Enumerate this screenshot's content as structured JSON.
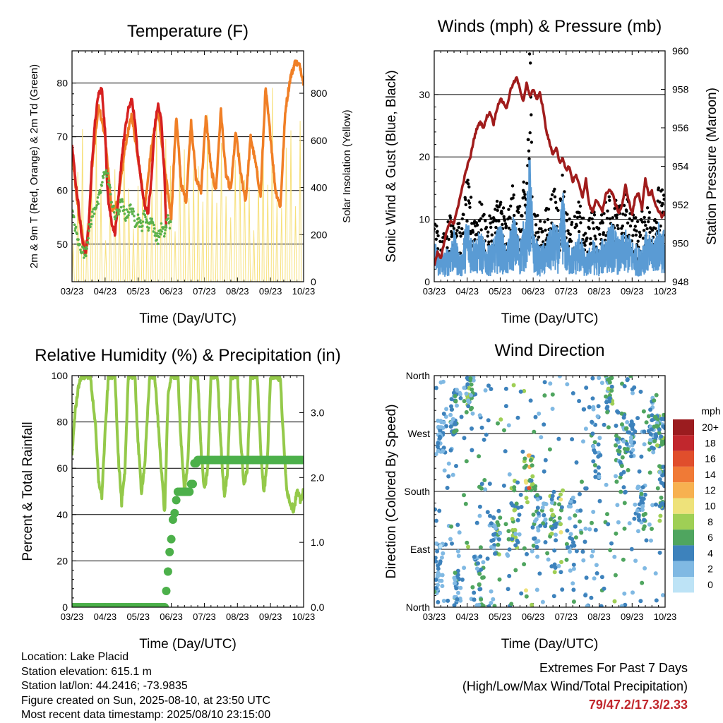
{
  "colors": {
    "temp_2m": "#d62020",
    "temp_9m": "#f07f26",
    "dewpoint": "#5ab04a",
    "solar": "#f7e07a",
    "wind_sonic": "#5a9bd4",
    "wind_gust": "#000000",
    "pressure": "#a01c1c",
    "rh": "#94c94a",
    "precip": "#4cb04a"
  },
  "chart_data": [
    {
      "id": "temperature",
      "type": "line",
      "title": "Temperature (F)",
      "xlabel": "Time (Day/UTC)",
      "ylabel": "2m & 9m T (Red, Orange) & 2m Td (Green)",
      "ylabel_right": "Solar Insolation (Yellow)",
      "x_ticks": [
        "03/23",
        "04/23",
        "05/23",
        "06/23",
        "07/23",
        "08/23",
        "09/23",
        "10/23"
      ],
      "xlim": [
        0,
        7
      ],
      "ylim": [
        43,
        86
      ],
      "yticks": [
        50,
        60,
        70,
        80
      ],
      "ylim_right": [
        0,
        980
      ],
      "yticks_right": [
        0,
        200,
        400,
        600,
        800
      ],
      "grid": "horizontal",
      "series": [
        {
          "key": "temp_2m",
          "x": [
            0,
            0.1,
            0.2,
            0.3,
            0.4,
            0.5,
            0.6,
            0.7,
            0.8,
            0.9,
            1.0,
            1.05,
            1.1,
            1.2,
            1.3,
            1.4,
            1.5,
            1.6,
            1.7,
            1.8,
            1.9,
            2.0,
            2.1,
            2.2,
            2.3,
            2.4,
            2.5,
            2.6,
            2.7,
            2.8,
            2.85
          ],
          "y": [
            69,
            62,
            57,
            51,
            48,
            53,
            65,
            73,
            78,
            79,
            71,
            63,
            58,
            54,
            52,
            58,
            66,
            71,
            75,
            77,
            73,
            66,
            61,
            57,
            56,
            62,
            72,
            76,
            73,
            62,
            52
          ]
        },
        {
          "key": "temp_9m",
          "x": [
            0,
            0.1,
            0.2,
            0.3,
            0.4,
            0.5,
            0.6,
            0.8,
            1.0,
            1.2,
            1.4,
            1.6,
            1.8,
            2.0,
            2.2,
            2.4,
            2.6,
            2.8,
            3.0,
            3.15,
            3.3,
            3.45,
            3.6,
            3.75,
            3.9,
            4.05,
            4.2,
            4.35,
            4.5,
            4.65,
            4.8,
            4.95,
            5.1,
            5.25,
            5.4,
            5.55,
            5.7,
            5.85,
            6.0,
            6.15,
            6.3,
            6.45,
            6.6,
            6.75,
            6.9,
            7.0
          ],
          "y": [
            68,
            61,
            56,
            52,
            48,
            52,
            64,
            76,
            70,
            56,
            58,
            68,
            74,
            66,
            57,
            68,
            75,
            64,
            55,
            74,
            61,
            58,
            73,
            62,
            60,
            74,
            64,
            60,
            75,
            63,
            60,
            71,
            63,
            58,
            70,
            65,
            59,
            79,
            70,
            60,
            57,
            75,
            81,
            84,
            83,
            80
          ]
        },
        {
          "key": "dewpoint",
          "x": [
            0,
            0.1,
            0.2,
            0.3,
            0.4,
            0.5,
            0.6,
            0.7,
            0.8,
            0.9,
            1.0,
            1.1,
            1.2,
            1.3,
            1.4,
            1.5,
            1.6,
            1.7,
            1.8,
            1.9,
            2.0,
            2.1,
            2.2,
            2.3,
            2.4,
            2.5,
            2.6,
            2.7,
            2.8,
            2.9,
            3.0
          ],
          "y": [
            56,
            53,
            50,
            49,
            48,
            52,
            55,
            57,
            58,
            61,
            64,
            62,
            58,
            55,
            56,
            58,
            55,
            56,
            57,
            54,
            55,
            53,
            56,
            53,
            55,
            52,
            51,
            53,
            52,
            55,
            53
          ]
        },
        {
          "key": "solar",
          "peaks_x": [
            0.28,
            0.75,
            1.25,
            1.65,
            2.15,
            2.55,
            2.9,
            3.35,
            3.7,
            4.1,
            4.55,
            5.0,
            5.3,
            5.7,
            6.05,
            6.55,
            6.9
          ],
          "peaks_y": [
            780,
            880,
            720,
            820,
            750,
            840,
            760,
            800,
            780,
            780,
            850,
            880,
            620,
            950,
            880,
            920,
            970
          ]
        }
      ]
    },
    {
      "id": "winds",
      "type": "line",
      "title": "Winds (mph) & Pressure (mb)",
      "xlabel": "Time (Day/UTC)",
      "ylabel": "Sonic Wind & Gust (Blue, Black)",
      "ylabel_right": "Station Pressure (Maroon)",
      "x_ticks": [
        "03/23",
        "04/23",
        "05/23",
        "06/23",
        "07/23",
        "08/23",
        "09/23",
        "10/23"
      ],
      "xlim": [
        0,
        7
      ],
      "ylim": [
        0,
        37
      ],
      "yticks": [
        0,
        10,
        20,
        30
      ],
      "ylim_right": [
        948,
        960
      ],
      "yticks_right": [
        948,
        950,
        952,
        954,
        956,
        958,
        960
      ],
      "grid": "horizontal",
      "series": [
        {
          "key": "pressure",
          "x": [
            0,
            0.1,
            0.2,
            0.3,
            0.4,
            0.5,
            0.6,
            0.7,
            0.8,
            0.9,
            1.0,
            1.1,
            1.2,
            1.3,
            1.4,
            1.5,
            1.6,
            1.7,
            1.8,
            1.9,
            2.0,
            2.1,
            2.2,
            2.3,
            2.4,
            2.5,
            2.6,
            2.7,
            2.8,
            2.9,
            3.0,
            3.1,
            3.2,
            3.3,
            3.4,
            3.5,
            3.6,
            3.7,
            3.8,
            3.9,
            4.0,
            4.1,
            4.2,
            4.3,
            4.4,
            4.5,
            4.6,
            4.7,
            4.8,
            4.9,
            5.0,
            5.1,
            5.2,
            5.3,
            5.4,
            5.5,
            5.6,
            5.7,
            5.8,
            5.9,
            6.0,
            6.1,
            6.2,
            6.3,
            6.4,
            6.5,
            6.6,
            6.7,
            6.8,
            6.9,
            7.0
          ],
          "y": [
            948.8,
            949.5,
            949.2,
            950.0,
            950.8,
            951.2,
            951.0,
            951.8,
            952.5,
            953.3,
            954.0,
            954.5,
            955.4,
            956.0,
            956.3,
            956.0,
            956.6,
            956.8,
            956.2,
            957.0,
            957.5,
            957.3,
            957.0,
            957.9,
            958.3,
            958.6,
            958.0,
            957.4,
            958.3,
            957.6,
            958.0,
            957.5,
            957.8,
            957.0,
            955.8,
            955.2,
            954.6,
            955.0,
            954.2,
            954.4,
            953.8,
            954.0,
            953.2,
            953.6,
            953.0,
            952.4,
            953.3,
            952.0,
            951.6,
            952.2,
            952.0,
            951.7,
            952.5,
            952.8,
            952.6,
            952.0,
            951.6,
            952.0,
            953.0,
            952.2,
            951.5,
            952.4,
            952.6,
            951.8,
            953.3,
            952.5,
            952.7,
            952.0,
            951.7,
            951.4,
            951.6
          ]
        },
        {
          "key": "wind_sonic",
          "x": [
            0,
            0.2,
            0.4,
            0.6,
            0.8,
            1.0,
            1.2,
            1.4,
            1.6,
            1.8,
            2.0,
            2.2,
            2.4,
            2.6,
            2.8,
            2.9,
            3.0,
            3.2,
            3.4,
            3.6,
            3.8,
            3.9,
            4.0,
            4.2,
            4.4,
            4.6,
            4.8,
            5.0,
            5.2,
            5.4,
            5.6,
            5.8,
            6.0,
            6.2,
            6.4,
            6.6,
            6.8,
            7.0
          ],
          "y": [
            5,
            3,
            4,
            6,
            3,
            8,
            5,
            6,
            4,
            5,
            7,
            4,
            8,
            5,
            9,
            16,
            6,
            4,
            5,
            7,
            6,
            12,
            5,
            4,
            6,
            3,
            5,
            4,
            6,
            7,
            5,
            6,
            5,
            4,
            6,
            5,
            7,
            6
          ]
        },
        {
          "key": "wind_gust",
          "x": [
            0,
            0.2,
            0.4,
            0.6,
            0.8,
            1.0,
            1.2,
            1.4,
            1.6,
            1.8,
            2.0,
            2.2,
            2.4,
            2.6,
            2.8,
            2.9,
            3.0,
            3.2,
            3.4,
            3.6,
            3.8,
            3.9,
            4.0,
            4.2,
            4.4,
            4.6,
            4.8,
            5.0,
            5.2,
            5.4,
            5.6,
            5.8,
            6.0,
            6.2,
            6.4,
            6.6,
            6.8,
            7.0
          ],
          "y": [
            9,
            6,
            8,
            11,
            7,
            14,
            10,
            11,
            8,
            10,
            13,
            8,
            14,
            10,
            16,
            35,
            12,
            8,
            10,
            13,
            11,
            16,
            10,
            8,
            11,
            7,
            10,
            8,
            11,
            13,
            10,
            12,
            10,
            8,
            11,
            10,
            13,
            12
          ]
        }
      ]
    },
    {
      "id": "humidity",
      "type": "line",
      "title": "Relative Humidity (%) & Precipitation (in)",
      "xlabel": "Time (Day/UTC)",
      "ylabel": "Percent & Total Rainfall",
      "x_ticks": [
        "03/23",
        "04/23",
        "05/23",
        "06/23",
        "07/23",
        "08/23",
        "09/23",
        "10/23"
      ],
      "xlim": [
        0,
        7
      ],
      "ylim": [
        0,
        100
      ],
      "yticks": [
        0,
        20,
        40,
        60,
        80,
        100
      ],
      "ylim_right": [
        0.0,
        3.571
      ],
      "yticks_right": [
        "0.0",
        "1.0",
        "2.0",
        "3.0"
      ],
      "grid": "horizontal",
      "series": [
        {
          "key": "rh",
          "x": [
            0,
            0.1,
            0.2,
            0.3,
            0.4,
            0.55,
            0.7,
            0.8,
            0.9,
            1.0,
            1.1,
            1.2,
            1.3,
            1.4,
            1.5,
            1.6,
            1.7,
            1.8,
            1.9,
            2.0,
            2.1,
            2.2,
            2.35,
            2.5,
            2.6,
            2.7,
            2.8,
            2.9,
            3.0,
            3.1,
            3.2,
            3.3,
            3.4,
            3.5,
            3.6,
            3.7,
            3.8,
            3.9,
            4.0,
            4.1,
            4.2,
            4.3,
            4.4,
            4.5,
            4.6,
            4.7,
            4.8,
            4.9,
            5.0,
            5.1,
            5.2,
            5.3,
            5.4,
            5.5,
            5.6,
            5.7,
            5.8,
            5.9,
            6.0,
            6.1,
            6.2,
            6.3,
            6.4,
            6.5,
            6.6,
            6.7,
            6.8,
            6.9,
            7.0
          ],
          "y": [
            66,
            85,
            96,
            100,
            100,
            100,
            80,
            55,
            48,
            75,
            100,
            100,
            100,
            65,
            45,
            58,
            100,
            100,
            100,
            70,
            50,
            62,
            100,
            100,
            80,
            60,
            40,
            90,
            100,
            100,
            100,
            70,
            50,
            62,
            100,
            100,
            100,
            68,
            50,
            60,
            100,
            100,
            100,
            70,
            48,
            58,
            100,
            100,
            100,
            72,
            52,
            60,
            100,
            100,
            100,
            68,
            50,
            62,
            100,
            100,
            100,
            98,
            70,
            50,
            45,
            42,
            50,
            46,
            50
          ]
        },
        {
          "key": "precip",
          "x": [
            0,
            0.5,
            1.0,
            1.5,
            2.0,
            2.5,
            2.8,
            2.85,
            2.9,
            2.95,
            3.0,
            3.05,
            3.1,
            3.15,
            3.2,
            3.3,
            3.4,
            3.5,
            3.6,
            3.7,
            3.8,
            4.0,
            4.5,
            5.0,
            5.5,
            6.0,
            6.5,
            7.0
          ],
          "y": [
            0.0,
            0.0,
            0.0,
            0.0,
            0.0,
            0.0,
            0.0,
            0.25,
            0.55,
            0.85,
            1.05,
            1.35,
            1.45,
            1.65,
            1.78,
            1.78,
            1.78,
            1.78,
            1.9,
            2.22,
            2.27,
            2.27,
            2.27,
            2.27,
            2.27,
            2.27,
            2.27,
            2.27
          ]
        }
      ]
    },
    {
      "id": "direction",
      "type": "scatter",
      "title": "Wind Direction",
      "xlabel": "Time (Day/UTC)",
      "ylabel": "Direction (Colored By Speed)",
      "x_ticks": [
        "03/23",
        "04/23",
        "05/23",
        "06/23",
        "07/23",
        "08/23",
        "09/23",
        "10/23"
      ],
      "xlim": [
        0,
        7
      ],
      "ylim": [
        0,
        360
      ],
      "y_tick_labels": [
        "North",
        "East",
        "South",
        "West",
        "North"
      ],
      "y_tick_values": [
        0,
        90,
        180,
        270,
        360
      ],
      "grid": "horizontal",
      "colorbar": {
        "title": "mph",
        "labels": [
          "20+",
          "18",
          "16",
          "14",
          "12",
          "10",
          "8",
          "6",
          "4",
          "2",
          "0"
        ],
        "colors": [
          "#9b1c1f",
          "#c1272d",
          "#e04e2c",
          "#f07a36",
          "#f7b150",
          "#eee27a",
          "#9fcf55",
          "#4fa55f",
          "#3d82bc",
          "#80b9e3",
          "#bde3f6"
        ]
      }
    }
  ],
  "footer": {
    "location": "Location: Lake Placid",
    "elevation": "Station elevation: 615.1 m",
    "latlon": "Station lat/lon: 44.2416; -73.9835",
    "created": "Figure created on Sun, 2025-08-10, at 23:50 UTC",
    "recent": "Most recent data timestamp: 2025/08/10 23:15:00"
  },
  "extremes": {
    "heading": "Extremes For Past 7 Days",
    "subheading": "(High/Low/Max Wind/Total Precipitation)",
    "value": "79/47.2/17.3/2.33"
  }
}
